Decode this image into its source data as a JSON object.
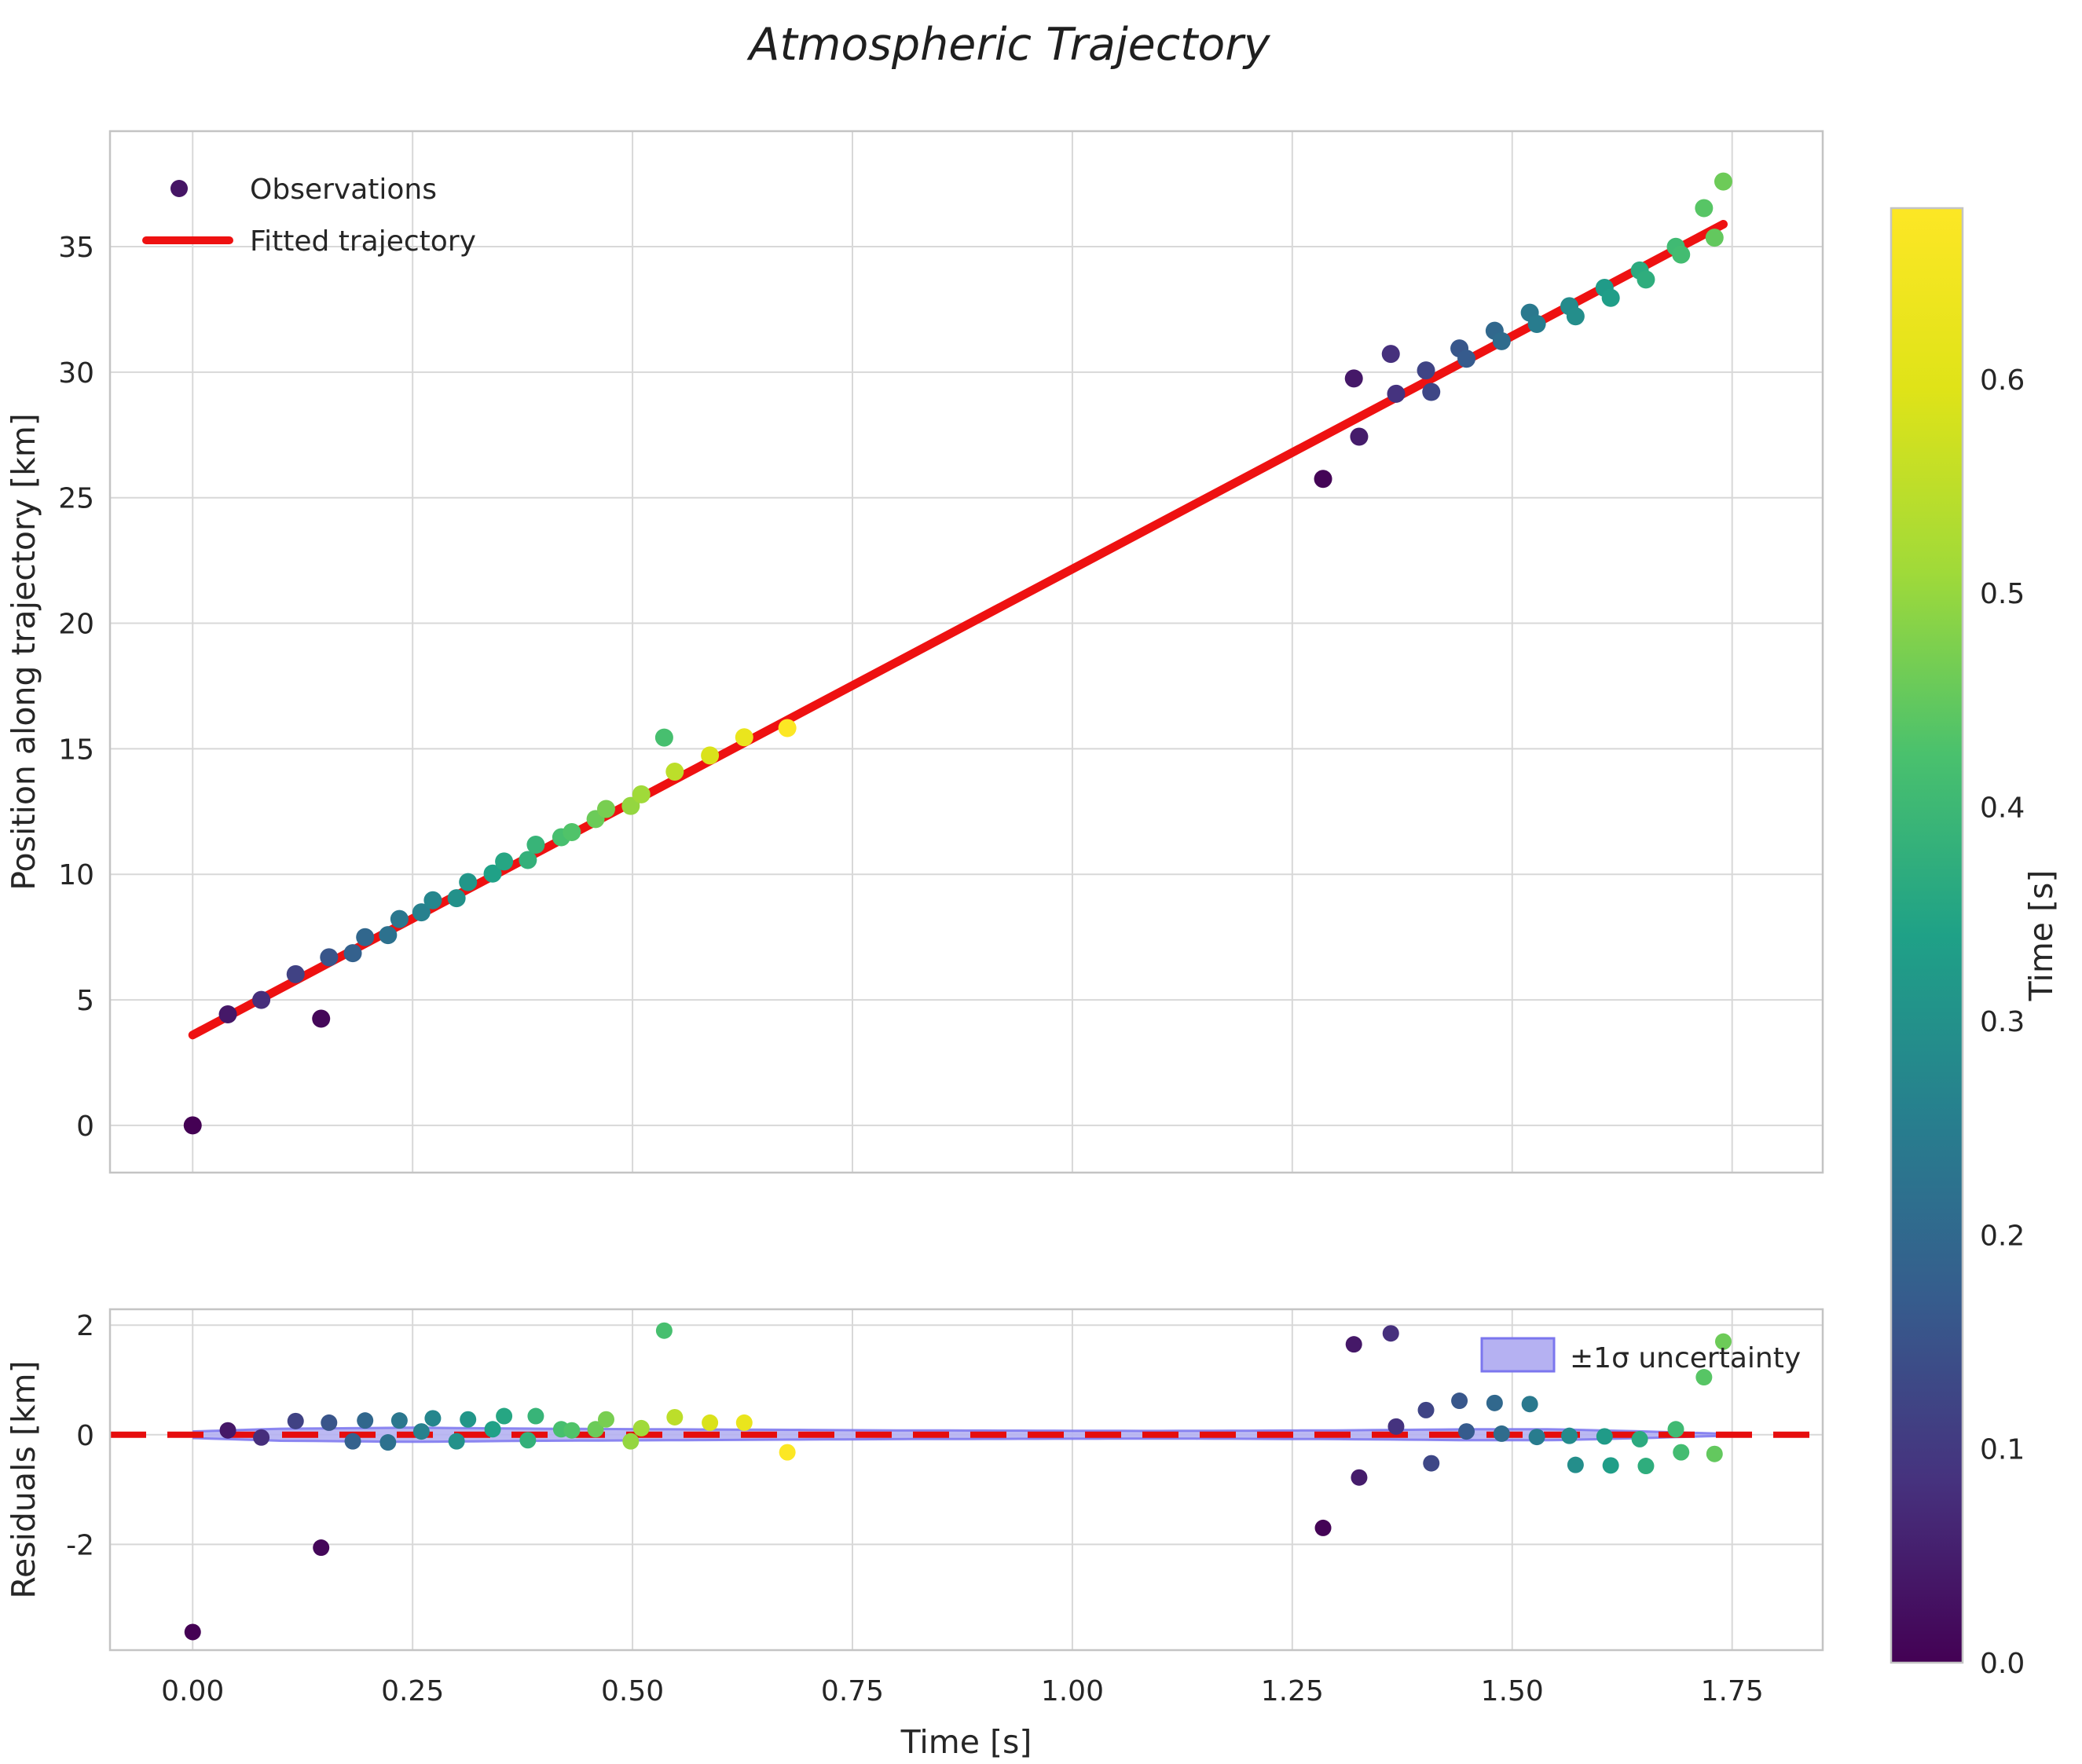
{
  "figure_title": "Atmospheric Trajectory",
  "chart_data": {
    "type": "scatter",
    "title": "Atmospheric Trajectory",
    "xlabel": "Time [s]",
    "xlim": [
      -0.094,
      1.853
    ],
    "xticks": [
      0.0,
      0.25,
      0.5,
      0.75,
      1.0,
      1.25,
      1.5,
      1.75
    ],
    "grid": true,
    "panels": {
      "main": {
        "ylabel": "Position along trajectory [km]",
        "ylim": [
          -1.88,
          39.6
        ],
        "yticks": [
          0,
          5,
          10,
          15,
          20,
          25,
          30,
          35
        ],
        "legend": {
          "observations": "Observations",
          "fit": "Fitted trajectory"
        }
      },
      "residuals": {
        "ylabel": "Residuals [km]",
        "ylim": [
          -3.93,
          2.29
        ],
        "yticks": [
          -2,
          0,
          2
        ],
        "legend": {
          "uncertainty": "±1σ uncertainty"
        }
      }
    },
    "fit_line": {
      "intercept_km": 3.6,
      "slope_km_per_s": 18.56,
      "t_start": 0.0,
      "t_end": 1.74
    },
    "uncertainty_band": {
      "t_start": 0.0,
      "t_end": 1.74,
      "halfwidth_anchors": [
        [
          0.0,
          0.06
        ],
        [
          0.1,
          0.11
        ],
        [
          0.25,
          0.13
        ],
        [
          0.4,
          0.11
        ],
        [
          0.55,
          0.1
        ],
        [
          0.8,
          0.08
        ],
        [
          1.1,
          0.07
        ],
        [
          1.3,
          0.08
        ],
        [
          1.45,
          0.1
        ],
        [
          1.55,
          0.1
        ],
        [
          1.65,
          0.06
        ],
        [
          1.74,
          0.02
        ]
      ]
    },
    "colorbar": {
      "label": "Time [s]",
      "vmin": 0.0,
      "vmax": 0.68,
      "ticks": [
        0.0,
        0.1,
        0.2,
        0.3,
        0.4,
        0.5,
        0.6
      ]
    },
    "point_format": [
      "time_s",
      "residual_km",
      "color_time_s"
    ],
    "points": [
      [
        0.0,
        -3.6,
        0.0
      ],
      [
        0.04,
        0.08,
        0.04
      ],
      [
        0.078,
        -0.05,
        0.078
      ],
      [
        0.117,
        0.25,
        0.117
      ],
      [
        0.146,
        -2.06,
        0.01
      ],
      [
        0.155,
        0.22,
        0.155
      ],
      [
        0.182,
        -0.12,
        0.182
      ],
      [
        0.196,
        0.26,
        0.196
      ],
      [
        0.222,
        -0.14,
        0.222
      ],
      [
        0.235,
        0.26,
        0.235
      ],
      [
        0.26,
        0.06,
        0.26
      ],
      [
        0.273,
        0.3,
        0.273
      ],
      [
        0.3,
        -0.12,
        0.3
      ],
      [
        0.313,
        0.28,
        0.313
      ],
      [
        0.341,
        0.1,
        0.341
      ],
      [
        0.354,
        0.34,
        0.354
      ],
      [
        0.381,
        -0.1,
        0.381
      ],
      [
        0.39,
        0.34,
        0.39
      ],
      [
        0.419,
        0.1,
        0.419
      ],
      [
        0.431,
        0.08,
        0.431
      ],
      [
        0.458,
        0.1,
        0.458
      ],
      [
        0.47,
        0.28,
        0.47
      ],
      [
        0.498,
        -0.12,
        0.498
      ],
      [
        0.51,
        0.12,
        0.51
      ],
      [
        0.536,
        1.9,
        0.42
      ],
      [
        0.548,
        0.32,
        0.548
      ],
      [
        0.588,
        0.22,
        0.588
      ],
      [
        0.627,
        0.22,
        0.627
      ],
      [
        0.676,
        -0.32,
        0.676
      ],
      [
        1.285,
        -1.7,
        0.005
      ],
      [
        1.32,
        1.65,
        0.04
      ],
      [
        1.326,
        -0.78,
        0.046
      ],
      [
        1.362,
        1.85,
        0.082
      ],
      [
        1.368,
        0.15,
        0.088
      ],
      [
        1.402,
        0.45,
        0.122
      ],
      [
        1.408,
        -0.52,
        0.128
      ],
      [
        1.44,
        0.62,
        0.16
      ],
      [
        1.448,
        0.06,
        0.168
      ],
      [
        1.48,
        0.58,
        0.2
      ],
      [
        1.488,
        0.02,
        0.208
      ],
      [
        1.52,
        0.56,
        0.24
      ],
      [
        1.528,
        -0.04,
        0.248
      ],
      [
        1.565,
        -0.02,
        0.285
      ],
      [
        1.572,
        -0.55,
        0.292
      ],
      [
        1.605,
        -0.03,
        0.325
      ],
      [
        1.612,
        -0.56,
        0.332
      ],
      [
        1.645,
        -0.08,
        0.365
      ],
      [
        1.652,
        -0.57,
        0.372
      ],
      [
        1.686,
        0.1,
        0.406
      ],
      [
        1.692,
        -0.32,
        0.412
      ],
      [
        1.718,
        1.05,
        0.438
      ],
      [
        1.73,
        -0.35,
        0.45
      ],
      [
        1.74,
        1.7,
        0.46
      ]
    ],
    "colors": {
      "fit_line": "#ee1111",
      "zero_line": "#e60d0d",
      "band_fill": "#b5b1f2",
      "band_edge": "#7b76ee",
      "grid": "#d8d8d8",
      "spine": "#c4c4c4",
      "text": "#262626",
      "background": "#ffffff",
      "viridis_stops": [
        "#440154",
        "#46327e",
        "#365c8d",
        "#277f8e",
        "#1fa187",
        "#4ac16d",
        "#a0da39",
        "#dfe318",
        "#fde725"
      ]
    }
  }
}
